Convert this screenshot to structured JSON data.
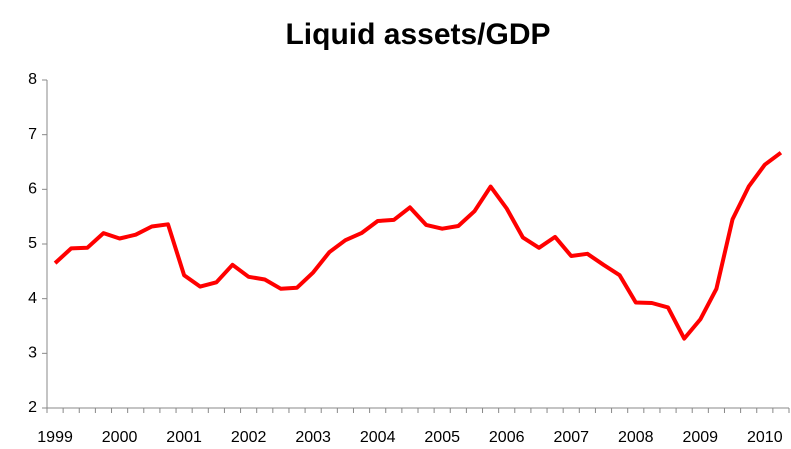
{
  "chart_data": {
    "type": "line",
    "title": "Liquid assets/GDP",
    "categories": [
      "1999",
      null,
      null,
      null,
      "2000",
      null,
      null,
      null,
      "2001",
      null,
      null,
      null,
      "2002",
      null,
      null,
      null,
      "2003",
      null,
      null,
      null,
      "2004",
      null,
      null,
      null,
      "2005",
      null,
      null,
      null,
      "2006",
      null,
      null,
      null,
      "2007",
      null,
      null,
      null,
      "2008",
      null,
      null,
      null,
      "2009",
      null,
      null,
      null,
      "2010",
      null
    ],
    "series": [
      {
        "name": "Liquid assets/GDP",
        "color": "#ff0000",
        "values": [
          4.65,
          4.92,
          4.93,
          5.2,
          5.1,
          5.17,
          5.32,
          5.36,
          4.43,
          4.22,
          4.3,
          4.62,
          4.4,
          4.35,
          4.18,
          4.2,
          4.48,
          4.85,
          5.07,
          5.2,
          5.42,
          5.44,
          5.67,
          5.35,
          5.28,
          5.33,
          5.6,
          6.05,
          5.65,
          5.12,
          4.93,
          5.13,
          4.78,
          4.82,
          4.62,
          4.43,
          3.93,
          3.92,
          3.84,
          3.27,
          3.62,
          4.18,
          5.45,
          6.05,
          6.45,
          6.67
        ]
      }
    ],
    "ylim": [
      2,
      8
    ],
    "yticks": [
      2,
      3,
      4,
      5,
      6,
      7,
      8
    ],
    "grid": false
  }
}
